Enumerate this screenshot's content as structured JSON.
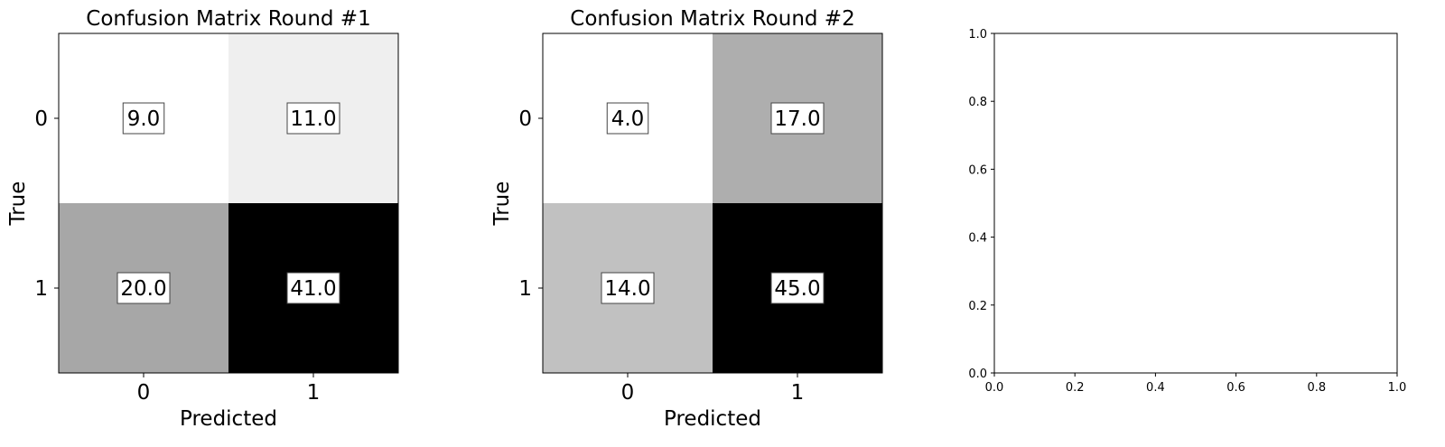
{
  "chart_data": [
    {
      "type": "heatmap",
      "title": "Confusion Matrix Round #1",
      "xlabel": "Predicted",
      "ylabel": "True",
      "x_categories": [
        "0",
        "1"
      ],
      "y_categories": [
        "0",
        "1"
      ],
      "values": [
        [
          9.0,
          11.0
        ],
        [
          20.0,
          41.0
        ]
      ],
      "value_labels": [
        [
          "9.0",
          "11.0"
        ],
        [
          "20.0",
          "41.0"
        ]
      ],
      "colormap": "greys",
      "grid": false
    },
    {
      "type": "heatmap",
      "title": "Confusion Matrix Round #2",
      "xlabel": "Predicted",
      "ylabel": "True",
      "x_categories": [
        "0",
        "1"
      ],
      "y_categories": [
        "0",
        "1"
      ],
      "values": [
        [
          4.0,
          17.0
        ],
        [
          14.0,
          45.0
        ]
      ],
      "value_labels": [
        [
          "4.0",
          "17.0"
        ],
        [
          "14.0",
          "45.0"
        ]
      ],
      "colormap": "greys",
      "grid": false
    },
    {
      "type": "scatter",
      "title": "",
      "xlabel": "",
      "ylabel": "",
      "xlim": [
        0.0,
        1.0
      ],
      "ylim": [
        0.0,
        1.0
      ],
      "x_ticks": [
        "0.0",
        "0.2",
        "0.4",
        "0.6",
        "0.8",
        "1.0"
      ],
      "y_ticks": [
        "0.0",
        "0.2",
        "0.4",
        "0.6",
        "0.8",
        "1.0"
      ],
      "series": [],
      "grid": false
    }
  ]
}
